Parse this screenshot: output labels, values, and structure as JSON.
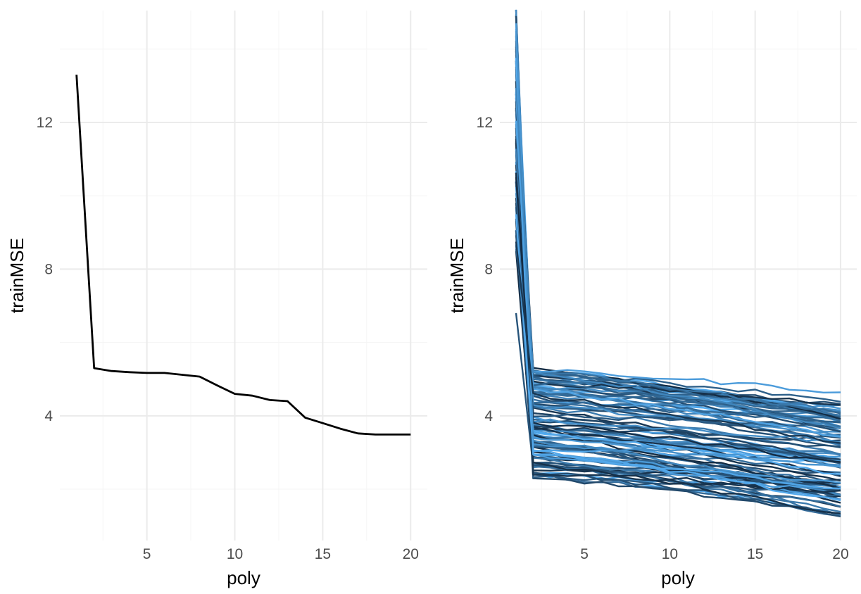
{
  "colors": {
    "background": "#ffffff",
    "grid_major": "#ebebeb",
    "grid_minor": "#f5f5f5",
    "tick_text": "#4d4d4d",
    "single_line": "#000000",
    "sample_dark": "#132b43",
    "sample_light": "#56b1f7"
  },
  "chart_data": [
    {
      "type": "line",
      "xlabel": "poly",
      "ylabel": "trainMSE",
      "xlim": [
        0.05,
        20.95
      ],
      "ylim": [
        0.6,
        15.05
      ],
      "xticks": [
        5,
        10,
        15,
        20
      ],
      "yticks": [
        4,
        8,
        12
      ],
      "grid": true,
      "legend": "none",
      "series": [
        {
          "x": [
            1,
            2,
            3,
            4,
            5,
            6,
            7,
            8,
            9,
            10,
            11,
            12,
            13,
            14,
            15,
            16,
            17,
            18,
            19,
            20
          ],
          "values": [
            13.3,
            5.3,
            5.22,
            5.19,
            5.17,
            5.17,
            5.12,
            5.07,
            4.83,
            4.6,
            4.55,
            4.43,
            4.4,
            3.95,
            3.8,
            3.65,
            3.52,
            3.49,
            3.49,
            3.49
          ]
        }
      ]
    },
    {
      "type": "line",
      "xlabel": "poly",
      "ylabel": "trainMSE",
      "xlim": [
        0.05,
        20.95
      ],
      "ylim": [
        0.6,
        15.05
      ],
      "xticks": [
        5,
        10,
        15,
        20
      ],
      "yticks": [
        4,
        8,
        12
      ],
      "grid": true,
      "legend": "none",
      "series_count": 100,
      "series_ranges": {
        "poly_1": [
          6.8,
          15.1
        ],
        "poly_2": [
          2.3,
          5.3
        ],
        "poly_20": [
          1.3,
          3.8
        ]
      }
    }
  ]
}
